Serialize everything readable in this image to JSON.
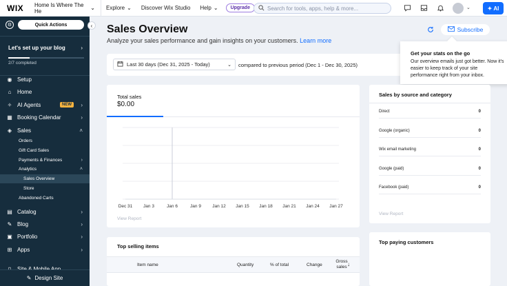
{
  "topbar": {
    "logo": "WIX",
    "site_name": "Home Is Where The He",
    "nav": [
      "Explore",
      "Discover Wix Studio",
      "Help"
    ],
    "upgrade": "Upgrade",
    "search_placeholder": "Search for tools, apps, help & more...",
    "ai_label": "AI"
  },
  "sidebar": {
    "quick_actions": "Quick Actions",
    "setup_card": {
      "title": "Let's set up your blog",
      "progress_text": "2/7 completed",
      "progress": 0.2857
    },
    "items": [
      {
        "label": "Setup",
        "icon": "setup-icon"
      },
      {
        "label": "Home",
        "icon": "home-icon"
      },
      {
        "label": "AI Agents",
        "icon": "ai-icon",
        "badge": "NEW"
      },
      {
        "label": "Booking Calendar",
        "icon": "calendar-icon"
      },
      {
        "label": "Sales",
        "icon": "sales-icon"
      },
      {
        "label": "Catalog",
        "icon": "catalog-icon"
      },
      {
        "label": "Blog",
        "icon": "blog-icon"
      },
      {
        "label": "Portfolio",
        "icon": "portfolio-icon"
      },
      {
        "label": "Apps",
        "icon": "apps-icon"
      },
      {
        "label": "Site & Mobile App",
        "icon": "mobile-icon"
      }
    ],
    "sales_sub": [
      "Orders",
      "Gift Card Sales",
      "Payments & Finances",
      "Analytics"
    ],
    "analytics_sub": [
      "Sales Overview",
      "Store"
    ],
    "abandoned": "Abandoned Carts",
    "design_site": "Design Site"
  },
  "main": {
    "title": "Sales Overview",
    "subtitle": "Analyze your sales performance and gain insights on your customers.",
    "learn_more": "Learn more",
    "subscribe": "Subscribe",
    "date_range": "Last 30 days (Dec 31, 2025 - Today)",
    "compare": "compared to previous period (Dec 1 - Dec 30, 2025)",
    "tooltip": {
      "title": "Get your stats on the go",
      "body": "Our overview emails just got better. Now it's\neasier to keep track of your site\nperformance right from your inbox."
    },
    "total_sales": {
      "label": "Total sales",
      "value": "$0.00"
    },
    "view_report": "View Report",
    "source": {
      "title": "Sales by source and category",
      "rows": [
        {
          "name": "Direct",
          "value": "0"
        },
        {
          "name": "Google (organic)",
          "value": "0"
        },
        {
          "name": "Wix email marketing",
          "value": "0"
        },
        {
          "name": "Google (paid)",
          "value": "0"
        },
        {
          "name": "Facebook (paid)",
          "value": "0"
        }
      ]
    },
    "top_selling": {
      "title": "Top selling items",
      "columns": [
        "Item name",
        "Quantity",
        "% of total",
        "Change",
        "Gross sales"
      ]
    },
    "top_paying": {
      "title": "Top paying customers"
    }
  },
  "chart_data": {
    "type": "line",
    "x": [
      "Dec 31",
      "Jan 3",
      "Jan 6",
      "Jan 9",
      "Jan 12",
      "Jan 15",
      "Jan 18",
      "Jan 21",
      "Jan 24",
      "Jan 27"
    ],
    "series": [
      {
        "values": [
          0,
          0,
          0,
          0,
          0,
          0,
          0,
          0,
          0,
          0
        ]
      }
    ],
    "title": "",
    "xlabel": "",
    "ylabel": "",
    "grid": true
  }
}
